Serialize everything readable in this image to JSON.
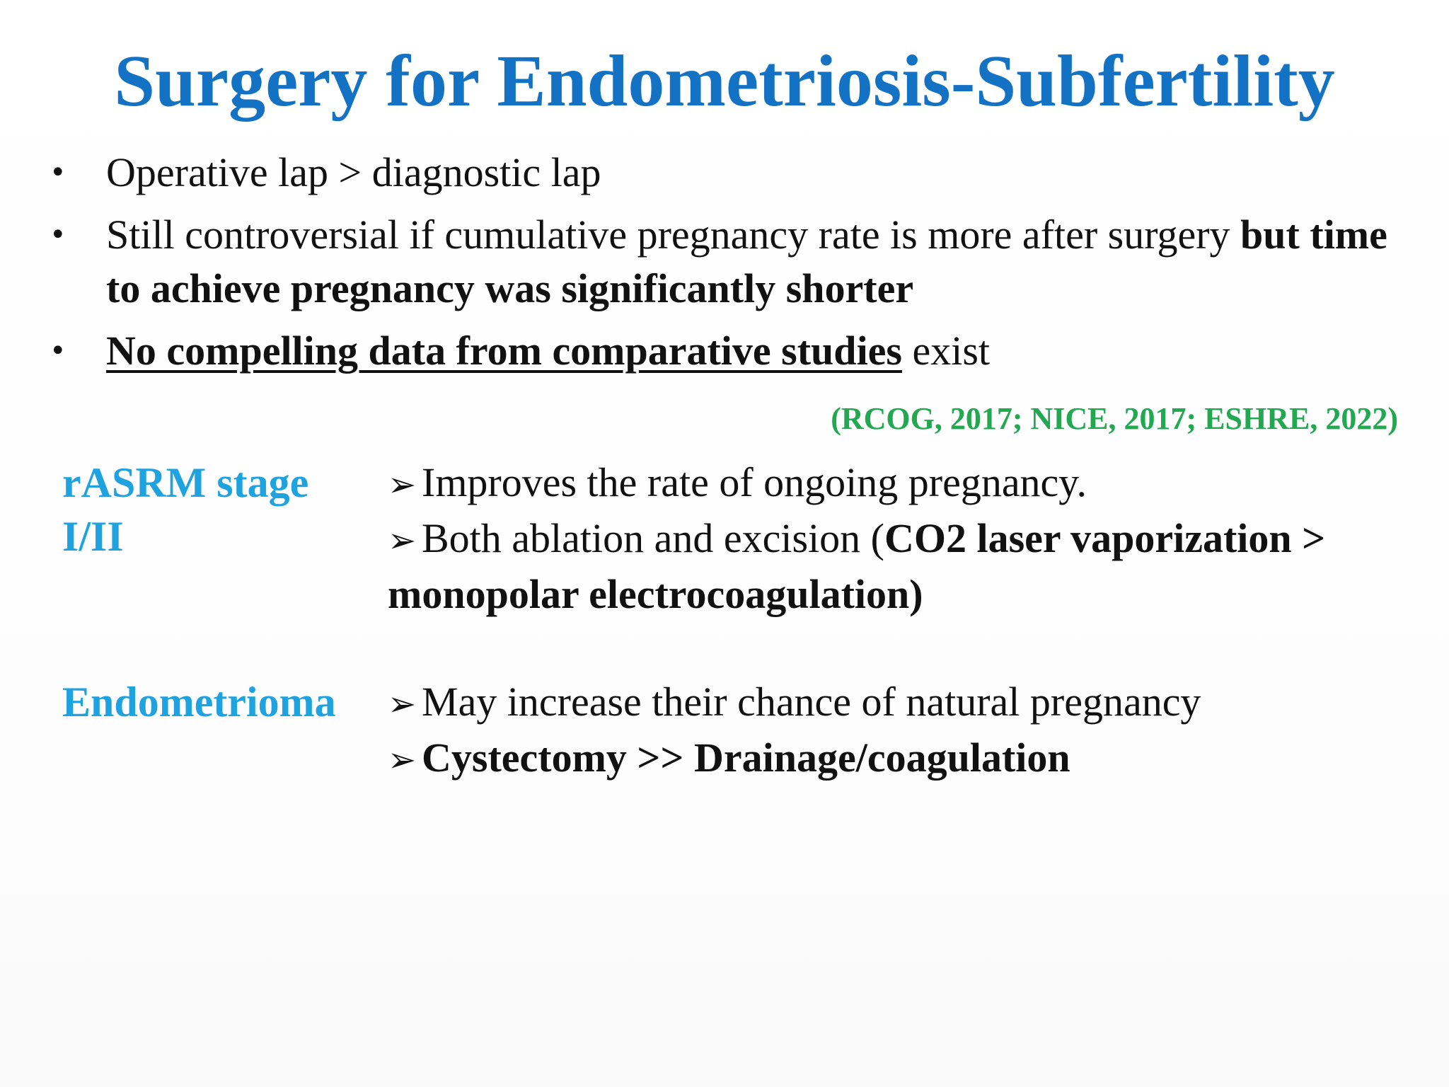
{
  "title": "Surgery for Endometriosis-Subfertility",
  "bullets": {
    "b1": "Operative lap > diagnostic lap",
    "b2_normal": "Still controversial if cumulative pregnancy rate is more after surgery ",
    "b2_bold": "but time to achieve pregnancy was significantly shorter",
    "b3_underlined": "No compelling data from comparative studies",
    "b3_rest": " exist"
  },
  "citation": "(RCOG, 2017; NICE, 2017; ESHRE, 2022)",
  "rows": [
    {
      "label_line1": "rASRM stage",
      "label_line2": "I/II",
      "item1": "Improves the rate of ongoing pregnancy.",
      "item2_normal": "Both ablation and excision (",
      "item2_bold": "CO2 laser vaporization > monopolar electrocoagulation)"
    },
    {
      "label": "Endometrioma",
      "item1": "May increase their chance of natural pregnancy",
      "item2_bold": "Cystectomy >> Drainage/coagulation"
    }
  ],
  "icons": {
    "bullet": "•",
    "arrow": "➢"
  },
  "colors": {
    "title": "#1472c4",
    "label": "#1fa3e0",
    "citation": "#22a851"
  }
}
